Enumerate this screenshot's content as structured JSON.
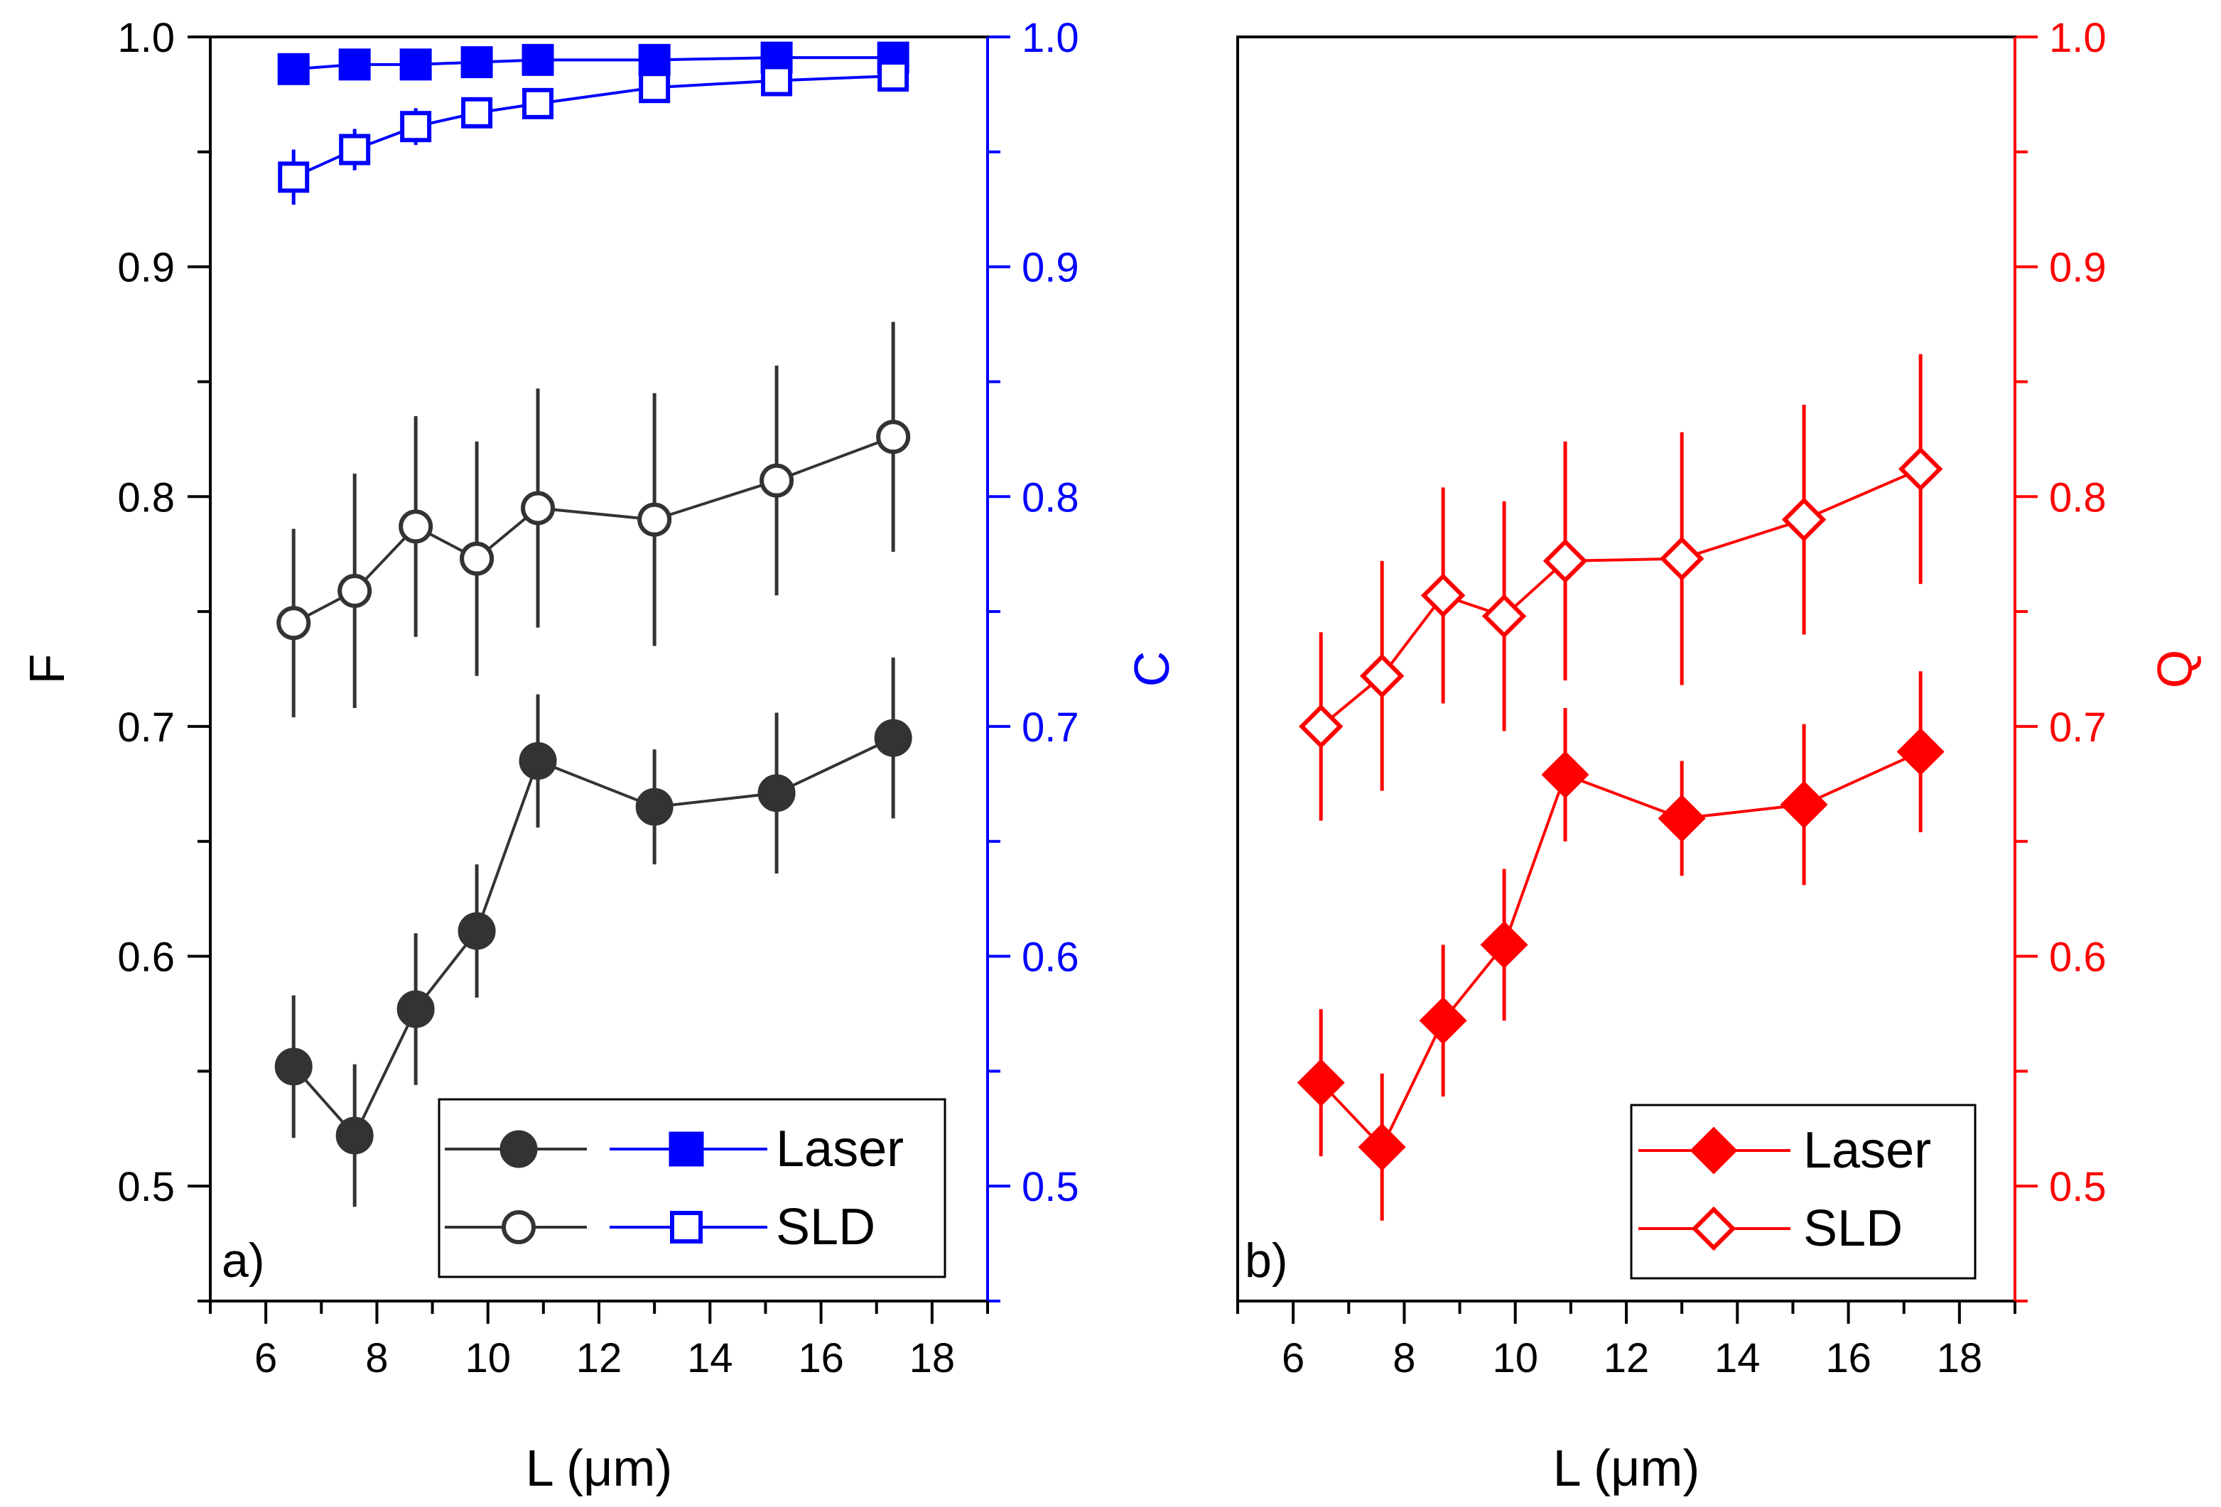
{
  "chart_data": [
    {
      "type": "line",
      "panel_label": "a)",
      "xlabel": "L (μm)",
      "ylabel_left": "F",
      "ylabel_right": "C",
      "xlim": [
        5,
        19
      ],
      "ylim_left": [
        0.45,
        1.0
      ],
      "ylim_right": [
        0.45,
        1.0
      ],
      "xticks": [
        "6",
        "8",
        "10",
        "12",
        "14",
        "16",
        "18"
      ],
      "yticks_left": [
        "0.5",
        "0.6",
        "0.7",
        "0.8",
        "0.9",
        "1.0"
      ],
      "yticks_right": [
        "0.5",
        "0.6",
        "0.7",
        "0.8",
        "0.9",
        "1.0"
      ],
      "x": [
        6.5,
        7.6,
        8.7,
        9.8,
        10.9,
        13.0,
        15.2,
        17.3
      ],
      "series": [
        {
          "name": "F Laser",
          "axis": "left",
          "color": "#333333",
          "marker": "circle-filled",
          "legend": "Laser",
          "values": [
            0.552,
            0.522,
            0.577,
            0.611,
            0.685,
            0.665,
            0.671,
            0.695
          ],
          "errors": [
            0.031,
            0.031,
            0.033,
            0.029,
            0.029,
            0.025,
            0.035,
            0.035
          ]
        },
        {
          "name": "F SLD",
          "axis": "left",
          "color": "#333333",
          "marker": "circle-open",
          "legend": "SLD",
          "values": [
            0.745,
            0.759,
            0.787,
            0.773,
            0.795,
            0.79,
            0.807,
            0.826
          ],
          "errors": [
            0.041,
            0.051,
            0.048,
            0.051,
            0.052,
            0.055,
            0.05,
            0.05
          ]
        },
        {
          "name": "C Laser",
          "axis": "right",
          "color": "#0000ff",
          "marker": "square-filled",
          "legend": "Laser",
          "values": [
            0.986,
            0.988,
            0.988,
            0.989,
            0.99,
            0.99,
            0.991,
            0.991
          ],
          "errors": [
            0.003,
            0.003,
            0.003,
            0.003,
            0.003,
            0.003,
            0.003,
            0.003
          ]
        },
        {
          "name": "C SLD",
          "axis": "right",
          "color": "#0000ff",
          "marker": "square-open",
          "legend": "SLD",
          "values": [
            0.939,
            0.951,
            0.961,
            0.967,
            0.971,
            0.978,
            0.981,
            0.983
          ],
          "errors": [
            0.012,
            0.009,
            0.008,
            0.006,
            0.005,
            0.004,
            0.004,
            0.004
          ]
        }
      ],
      "legend": {
        "entries": [
          "Laser",
          "SLD"
        ],
        "position": "bottom-right"
      }
    },
    {
      "type": "line",
      "panel_label": "b)",
      "xlabel": "L (μm)",
      "ylabel_right": "Q",
      "xlim": [
        5,
        19
      ],
      "ylim_right": [
        0.45,
        1.0
      ],
      "xticks": [
        "6",
        "8",
        "10",
        "12",
        "14",
        "16",
        "18"
      ],
      "yticks_right": [
        "0.5",
        "0.6",
        "0.7",
        "0.8",
        "0.9",
        "1.0"
      ],
      "x": [
        6.5,
        7.6,
        8.7,
        9.8,
        10.9,
        13.0,
        15.2,
        17.3
      ],
      "series": [
        {
          "name": "Q Laser",
          "axis": "right",
          "color": "#ff0000",
          "marker": "diamond-filled",
          "legend": "Laser",
          "values": [
            0.545,
            0.517,
            0.572,
            0.605,
            0.679,
            0.66,
            0.666,
            0.689
          ],
          "errors": [
            0.032,
            0.032,
            0.033,
            0.033,
            0.029,
            0.025,
            0.035,
            0.035
          ]
        },
        {
          "name": "Q SLD",
          "axis": "right",
          "color": "#ff0000",
          "marker": "diamond-open",
          "legend": "SLD",
          "values": [
            0.7,
            0.722,
            0.757,
            0.748,
            0.772,
            0.773,
            0.79,
            0.812
          ],
          "errors": [
            0.041,
            0.05,
            0.047,
            0.05,
            0.052,
            0.055,
            0.05,
            0.05
          ]
        }
      ],
      "legend": {
        "entries": [
          "Laser",
          "SLD"
        ],
        "position": "bottom-right"
      }
    }
  ]
}
